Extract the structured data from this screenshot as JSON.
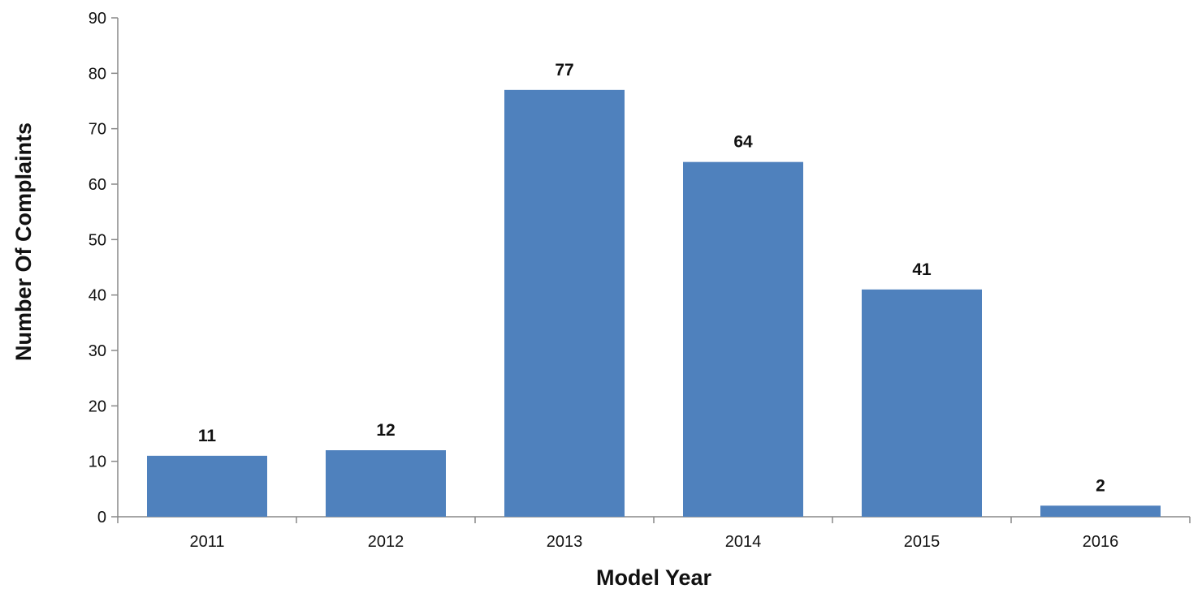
{
  "chart_data": {
    "type": "bar",
    "title": "",
    "xlabel": "Model Year",
    "ylabel": "Number Of Complaints",
    "categories": [
      "2011",
      "2012",
      "2013",
      "2014",
      "2015",
      "2016"
    ],
    "values": [
      11,
      12,
      77,
      64,
      41,
      2
    ],
    "data_labels": [
      "11",
      "12",
      "77",
      "64",
      "41",
      "2"
    ],
    "ylim": [
      0,
      90
    ],
    "yticks": [
      0,
      10,
      20,
      30,
      40,
      50,
      60,
      70,
      80,
      90
    ],
    "ytick_labels": [
      "0",
      "10",
      "20",
      "30",
      "40",
      "50",
      "60",
      "70",
      "80",
      "90"
    ],
    "grid": false,
    "legend": "none",
    "colors": {
      "bar": "#4f81bd",
      "axis": "#888888",
      "text": "#111111"
    }
  }
}
